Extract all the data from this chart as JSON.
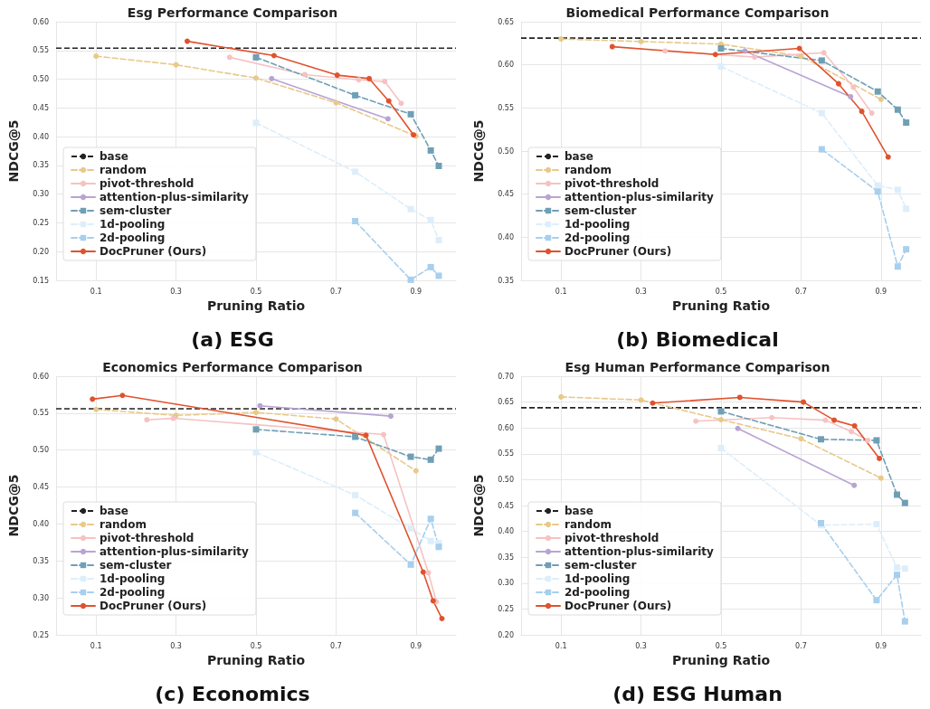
{
  "chart_data": [
    {
      "type": "line",
      "title": "Esg Performance Comparison",
      "xlabel": "Pruning Ratio",
      "ylabel": "NDCG@5",
      "annotations": [
        "(a) ESG"
      ],
      "xlim": [
        0,
        1
      ],
      "xticks": [
        0.1,
        0.3,
        0.5,
        0.7,
        0.9
      ],
      "ylim": [
        0.15,
        0.6
      ],
      "yticks": [
        0.15,
        {
          "value": 0.2,
          "label": "0.20"
        },
        0.25,
        {
          "value": 0.3,
          "label": "0.30"
        },
        0.35,
        {
          "value": 0.4,
          "label": "0.40"
        },
        0.45,
        {
          "value": 0.5,
          "label": "0.50"
        },
        0.55,
        {
          "value": 0.6,
          "label": "0.60"
        }
      ],
      "grid": true,
      "legend": "bottom left",
      "ref_lines": [
        {
          "axis": "y",
          "value": 0.554,
          "label": "base",
          "color": "#222222",
          "line_style": "dashed"
        }
      ],
      "series": [
        {
          "name": "random",
          "color": "#e8c98a",
          "marker": "circle",
          "line_style": "dashed",
          "x": [
            0.1,
            0.3,
            0.5,
            0.7,
            0.9
          ],
          "values": [
            0.54,
            0.525,
            0.502,
            0.459,
            0.401
          ]
        },
        {
          "name": "pivot-threshold",
          "color": "#f6c2c2",
          "marker": "circle",
          "line_style": "solid",
          "x": [
            0.434,
            0.622,
            0.757,
            0.822,
            0.863
          ],
          "values": [
            0.538,
            0.508,
            0.499,
            0.496,
            0.458
          ]
        },
        {
          "name": "attention-plus-similarity",
          "color": "#b9a3d3",
          "marker": "circle",
          "line_style": "solid",
          "x": [
            0.539,
            0.83
          ],
          "values": [
            0.501,
            0.431
          ]
        },
        {
          "name": "sem-cluster",
          "color": "#6f9fb5",
          "marker": "square",
          "line_style": "dashed",
          "x": [
            0.5,
            0.748,
            0.887,
            0.937,
            0.957
          ],
          "values": [
            0.538,
            0.472,
            0.439,
            0.376,
            0.349
          ]
        },
        {
          "name": "1d-pooling",
          "color": "#ddeefa",
          "marker": "square",
          "line_style": "dashed",
          "x": [
            0.5,
            0.748,
            0.887,
            0.937,
            0.957
          ],
          "values": [
            0.424,
            0.339,
            0.274,
            0.255,
            0.22
          ]
        },
        {
          "name": "2d-pooling",
          "color": "#a7cfee",
          "marker": "square",
          "line_style": "dashed",
          "x": [
            0.748,
            0.887,
            0.937,
            0.957
          ],
          "values": [
            0.253,
            0.151,
            0.173,
            0.158
          ]
        },
        {
          "name": "DocPruner (Ours)",
          "color": "#e0522e",
          "marker": "circle",
          "line_style": "solid",
          "x": [
            0.328,
            0.545,
            0.703,
            0.783,
            0.832,
            0.894
          ],
          "values": [
            0.566,
            0.541,
            0.507,
            0.501,
            0.462,
            0.403
          ]
        }
      ]
    },
    {
      "type": "line",
      "title": "Biomedical Performance Comparison",
      "xlabel": "Pruning Ratio",
      "ylabel": "NDCG@5",
      "annotations": [
        "(b) Biomedical"
      ],
      "xlim": [
        0,
        1
      ],
      "xticks": [
        0.1,
        0.3,
        0.5,
        0.7,
        0.9
      ],
      "ylim": [
        0.35,
        0.65
      ],
      "yticks": [
        0.35,
        {
          "value": 0.4,
          "label": "0.40"
        },
        0.45,
        {
          "value": 0.5,
          "label": "0.50"
        },
        0.55,
        {
          "value": 0.6,
          "label": "0.60"
        },
        0.65
      ],
      "grid": true,
      "legend": "bottom left",
      "ref_lines": [
        {
          "axis": "y",
          "value": 0.631,
          "label": "base",
          "color": "#222222",
          "line_style": "dashed"
        }
      ],
      "series": [
        {
          "name": "random",
          "color": "#e8c98a",
          "marker": "circle",
          "line_style": "dashed",
          "x": [
            0.1,
            0.3,
            0.5,
            0.7,
            0.9
          ],
          "values": [
            0.63,
            0.627,
            0.624,
            0.61,
            0.56
          ]
        },
        {
          "name": "pivot-threshold",
          "color": "#f6c2c2",
          "marker": "circle",
          "line_style": "solid",
          "x": [
            0.36,
            0.584,
            0.757,
            0.831,
            0.877
          ],
          "values": [
            0.616,
            0.609,
            0.614,
            0.574,
            0.544
          ]
        },
        {
          "name": "attention-plus-similarity",
          "color": "#b9a3d3",
          "marker": "circle",
          "line_style": "solid",
          "x": [
            0.56,
            0.824
          ],
          "values": [
            0.616,
            0.563
          ]
        },
        {
          "name": "sem-cluster",
          "color": "#6f9fb5",
          "marker": "square",
          "line_style": "dashed",
          "x": [
            0.5,
            0.752,
            0.892,
            0.942,
            0.963
          ],
          "values": [
            0.619,
            0.605,
            0.569,
            0.548,
            0.533
          ]
        },
        {
          "name": "1d-pooling",
          "color": "#ddeefa",
          "marker": "square",
          "line_style": "dashed",
          "x": [
            0.5,
            0.752,
            0.892,
            0.942,
            0.963
          ],
          "values": [
            0.598,
            0.544,
            0.46,
            0.455,
            0.433
          ]
        },
        {
          "name": "2d-pooling",
          "color": "#a7cfee",
          "marker": "square",
          "line_style": "dashed",
          "x": [
            0.752,
            0.892,
            0.942,
            0.963
          ],
          "values": [
            0.502,
            0.453,
            0.366,
            0.386
          ]
        },
        {
          "name": "DocPruner (Ours)",
          "color": "#e0522e",
          "marker": "circle",
          "line_style": "solid",
          "x": [
            0.228,
            0.486,
            0.696,
            0.794,
            0.852,
            0.918
          ],
          "values": [
            0.621,
            0.612,
            0.619,
            0.578,
            0.546,
            0.493
          ]
        }
      ]
    },
    {
      "type": "line",
      "title": "Economics Performance Comparison",
      "xlabel": "Pruning Ratio",
      "ylabel": "NDCG@5",
      "annotations": [
        "(c) Economics"
      ],
      "xlim": [
        0,
        1
      ],
      "xticks": [
        0.1,
        0.3,
        0.5,
        0.7,
        0.9
      ],
      "ylim": [
        0.25,
        0.6
      ],
      "yticks": [
        0.25,
        {
          "value": 0.3,
          "label": "0.30"
        },
        0.35,
        {
          "value": 0.4,
          "label": "0.40"
        },
        0.45,
        {
          "value": 0.5,
          "label": "0.50"
        },
        0.55,
        {
          "value": 0.6,
          "label": "0.60"
        }
      ],
      "grid": true,
      "legend": "bottom left",
      "ref_lines": [
        {
          "axis": "y",
          "value": 0.556,
          "label": "base",
          "color": "#222222",
          "line_style": "dashed"
        }
      ],
      "series": [
        {
          "name": "random",
          "color": "#e8c98a",
          "marker": "circle",
          "line_style": "dashed",
          "x": [
            0.1,
            0.3,
            0.5,
            0.7,
            0.9
          ],
          "values": [
            0.555,
            0.547,
            0.551,
            0.542,
            0.472
          ]
        },
        {
          "name": "pivot-threshold",
          "color": "#f6c2c2",
          "marker": "circle",
          "line_style": "solid",
          "x": [
            0.227,
            0.293,
            0.819,
            0.931,
            0.951
          ],
          "values": [
            0.541,
            0.543,
            0.521,
            0.334,
            0.295
          ]
        },
        {
          "name": "attention-plus-similarity",
          "color": "#b9a3d3",
          "marker": "circle",
          "line_style": "solid",
          "x": [
            0.51,
            0.837
          ],
          "values": [
            0.56,
            0.546
          ]
        },
        {
          "name": "sem-cluster",
          "color": "#6f9fb5",
          "marker": "square",
          "line_style": "dashed",
          "x": [
            0.5,
            0.748,
            0.887,
            0.937,
            0.957
          ],
          "values": [
            0.528,
            0.518,
            0.491,
            0.487,
            0.502
          ]
        },
        {
          "name": "1d-pooling",
          "color": "#ddeefa",
          "marker": "square",
          "line_style": "dashed",
          "x": [
            0.5,
            0.748,
            0.887,
            0.937,
            0.957
          ],
          "values": [
            0.497,
            0.439,
            0.394,
            0.377,
            0.374
          ]
        },
        {
          "name": "2d-pooling",
          "color": "#a7cfee",
          "marker": "square",
          "line_style": "dashed",
          "x": [
            0.748,
            0.887,
            0.937,
            0.957
          ],
          "values": [
            0.415,
            0.345,
            0.407,
            0.369
          ]
        },
        {
          "name": "DocPruner (Ours)",
          "color": "#e0522e",
          "marker": "circle",
          "line_style": "solid",
          "x": [
            0.091,
            0.166,
            0.775,
            0.918,
            0.943,
            0.965
          ],
          "values": [
            0.569,
            0.574,
            0.52,
            0.335,
            0.296,
            0.272
          ]
        }
      ]
    },
    {
      "type": "line",
      "title": "Esg Human Performance Comparison",
      "xlabel": "Pruning Ratio",
      "ylabel": "NDCG@5",
      "annotations": [
        "(d) ESG Human"
      ],
      "xlim": [
        0,
        1
      ],
      "xticks": [
        0.1,
        0.3,
        0.5,
        0.7,
        0.9
      ],
      "ylim": [
        0.2,
        0.7
      ],
      "yticks": [
        {
          "value": 0.2,
          "label": "0.20"
        },
        0.25,
        {
          "value": 0.3,
          "label": "0.30"
        },
        0.35,
        {
          "value": 0.4,
          "label": "0.40"
        },
        0.45,
        {
          "value": 0.5,
          "label": "0.50"
        },
        0.55,
        {
          "value": 0.6,
          "label": "0.60"
        },
        0.65,
        {
          "value": 0.7,
          "label": "0.70"
        }
      ],
      "grid": true,
      "legend": "bottom left",
      "ref_lines": [
        {
          "axis": "y",
          "value": 0.639,
          "label": "base",
          "color": "#222222",
          "line_style": "dashed"
        }
      ],
      "series": [
        {
          "name": "random",
          "color": "#e8c98a",
          "marker": "circle",
          "line_style": "dashed",
          "x": [
            0.1,
            0.3,
            0.5,
            0.7,
            0.9
          ],
          "values": [
            0.66,
            0.654,
            0.616,
            0.579,
            0.503
          ]
        },
        {
          "name": "pivot-threshold",
          "color": "#f6c2c2",
          "marker": "circle",
          "line_style": "solid",
          "x": [
            0.437,
            0.627,
            0.761,
            0.826,
            0.867
          ],
          "values": [
            0.613,
            0.62,
            0.615,
            0.593,
            0.576
          ]
        },
        {
          "name": "attention-plus-similarity",
          "color": "#b9a3d3",
          "marker": "circle",
          "line_style": "solid",
          "x": [
            0.542,
            0.833
          ],
          "values": [
            0.599,
            0.489
          ]
        },
        {
          "name": "sem-cluster",
          "color": "#6f9fb5",
          "marker": "square",
          "line_style": "dashed",
          "x": [
            0.5,
            0.75,
            0.889,
            0.94,
            0.96
          ],
          "values": [
            0.632,
            0.578,
            0.576,
            0.471,
            0.455
          ]
        },
        {
          "name": "1d-pooling",
          "color": "#ddeefa",
          "marker": "square",
          "line_style": "dashed",
          "x": [
            0.5,
            0.75,
            0.889,
            0.94,
            0.96
          ],
          "values": [
            0.561,
            0.412,
            0.414,
            0.33,
            0.328
          ]
        },
        {
          "name": "2d-pooling",
          "color": "#a7cfee",
          "marker": "square",
          "line_style": "dashed",
          "x": [
            0.75,
            0.889,
            0.94,
            0.96
          ],
          "values": [
            0.416,
            0.267,
            0.316,
            0.226
          ]
        },
        {
          "name": "DocPruner (Ours)",
          "color": "#e0522e",
          "marker": "circle",
          "line_style": "solid",
          "x": [
            0.329,
            0.547,
            0.706,
            0.783,
            0.834,
            0.896
          ],
          "values": [
            0.648,
            0.659,
            0.65,
            0.615,
            0.604,
            0.541
          ]
        }
      ]
    }
  ]
}
